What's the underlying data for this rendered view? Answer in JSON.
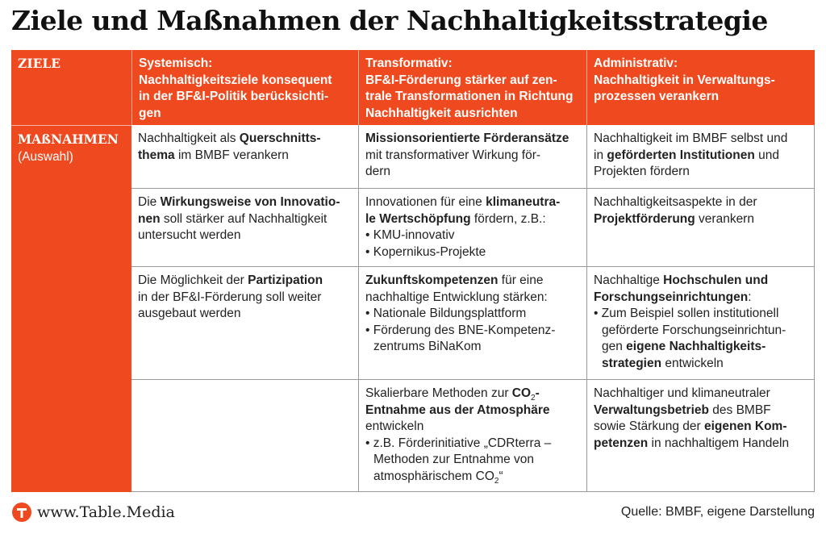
{
  "title": "Ziele und Maßnahmen der Nachhaltigkeitsstrategie",
  "table": {
    "header": [
      [
        [
          {
            "b": "ZIELE"
          }
        ]
      ],
      [
        [
          {
            "b": "Systemisch:"
          }
        ],
        [
          {
            "b": "Nachhaltigkeitsziele konsequent"
          }
        ],
        [
          {
            "b": "in der BF&I-Politik berücksichti-"
          }
        ],
        [
          {
            "b": "gen"
          }
        ]
      ],
      [
        [
          {
            "b": "Transformativ:"
          }
        ],
        [
          {
            "b": "BF&I-Förderung stärker auf zen-"
          }
        ],
        [
          {
            "b": "trale Transformationen in Richtung"
          }
        ],
        [
          {
            "b": "Nachhaltigkeit ausrichten"
          }
        ]
      ],
      [
        [
          {
            "b": "Administrativ:"
          }
        ],
        [
          {
            "b": "Nachhaltigkeit in Verwaltungs-"
          }
        ],
        [
          {
            "b": "prozessen verankern"
          }
        ]
      ]
    ],
    "rows": [
      {
        "cells": [
          [
            [
              {
                "b": "MAßNAHMEN"
              }
            ],
            [
              "(Auswahl)"
            ]
          ],
          [
            [
              "Nachhaltigkeit als ",
              {
                "b": "Querschnitts-"
              }
            ],
            [
              {
                "b": "thema"
              },
              " im BMBF verankern"
            ]
          ],
          [
            [
              {
                "b": "Missionsorientierte Förderansätze"
              }
            ],
            [
              "mit transformativer Wirkung för-"
            ],
            [
              "dern"
            ]
          ],
          [
            [
              "Nachhaltigkeit im BMBF selbst und"
            ],
            [
              "in ",
              {
                "b": "geförderten Institutionen"
              },
              " und"
            ],
            [
              "Projekten fördern"
            ]
          ]
        ]
      },
      {
        "cells": [
          [],
          [
            [
              "Die ",
              {
                "b": "Wirkungsweise von Innovatio-"
              }
            ],
            [
              {
                "b": "nen"
              },
              " soll stärker auf Nachhaltigkeit"
            ],
            [
              "untersucht werden"
            ]
          ],
          [
            [
              "Innovationen für eine ",
              {
                "b": "klimaneutra-"
              }
            ],
            [
              {
                "b": "le Wertschöpfung"
              },
              " fördern, z.B.:"
            ],
            [
              "• KMU-innovativ"
            ],
            [
              "• Kopernikus-Projekte"
            ]
          ],
          [
            [
              "Nachhaltigkeitsaspekte in der"
            ],
            [
              {
                "b": "Projektförderung"
              },
              " verankern"
            ]
          ]
        ]
      },
      {
        "cells": [
          [],
          [
            [
              "Die Möglichkeit der ",
              {
                "b": "Partizipation"
              }
            ],
            [
              "in der BF&I-Förderung soll weiter"
            ],
            [
              "ausgebaut werden"
            ]
          ],
          [
            [
              {
                "b": "Zukunftskompetenzen"
              },
              " für eine"
            ],
            [
              "nachhaltige Entwicklung stärken:"
            ],
            [
              "• Nationale Bildungsplattform"
            ],
            [
              "• Förderung des BNE-Kompetenz-"
            ],
            [
              "zentrums BiNaKom"
            ]
          ],
          [
            [
              "Nachhaltige ",
              {
                "b": "Hochschulen und"
              }
            ],
            [
              {
                "b": "Forschungseinrichtungen"
              },
              ":"
            ],
            [
              "• Zum Beispiel sollen institutionell"
            ],
            [
              "geförderte Forschungseinrichtun-"
            ],
            [
              "gen ",
              {
                "b": "eigene Nachhaltigkeits-"
              }
            ],
            [
              {
                "b": "strategien"
              },
              " entwickeln"
            ]
          ]
        ]
      },
      {
        "cells": [
          [],
          [],
          [
            [
              "Skalierbare Methoden zur ",
              {
                "b": "CO"
              },
              {
                "sub": "2"
              },
              {
                "b": "-"
              }
            ],
            [
              {
                "b": "Entnahme aus der Atmosphäre"
              }
            ],
            [
              "entwickeln"
            ],
            [
              "• z.B. Förderinitiative „CDRterra –"
            ],
            [
              "Methoden zur Entnahme von"
            ],
            [
              "atmosphärischem CO",
              {
                "sub": "2"
              },
              "“"
            ]
          ],
          [
            [
              "Nachhaltiger und klimaneutraler"
            ],
            [
              {
                "b": "Verwaltungsbetrieb"
              },
              " des BMBF"
            ],
            [
              "sowie Stärkung der ",
              {
                "b": "eigenen Kom-"
              }
            ],
            [
              {
                "b": "petenzen"
              },
              " in nachhaltigem Handeln"
            ]
          ]
        ]
      }
    ]
  },
  "footer": {
    "site": "www.Table.Media",
    "source": "Quelle: BMBF, eigene Darstellung"
  }
}
